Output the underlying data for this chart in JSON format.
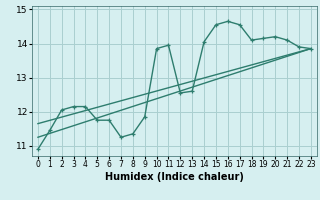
{
  "xlabel": "Humidex (Indice chaleur)",
  "background_color": "#d6eff0",
  "line_color": "#2e7d6e",
  "xlim": [
    -0.5,
    23.5
  ],
  "ylim": [
    10.7,
    15.1
  ],
  "yticks": [
    11,
    12,
    13,
    14,
    15
  ],
  "xticks": [
    0,
    1,
    2,
    3,
    4,
    5,
    6,
    7,
    8,
    9,
    10,
    11,
    12,
    13,
    14,
    15,
    16,
    17,
    18,
    19,
    20,
    21,
    22,
    23
  ],
  "curve1_x": [
    0,
    1,
    2,
    3,
    4,
    5,
    6,
    7,
    8,
    9,
    10,
    11,
    12,
    13,
    14,
    15,
    16,
    17,
    18,
    19,
    20,
    21,
    22,
    23
  ],
  "curve1_y": [
    10.9,
    11.45,
    12.05,
    12.15,
    12.15,
    11.75,
    11.75,
    11.25,
    11.35,
    11.85,
    13.85,
    13.95,
    12.55,
    12.6,
    14.05,
    14.55,
    14.65,
    14.55,
    14.1,
    14.15,
    14.2,
    14.1,
    13.9,
    13.85
  ],
  "line1_x": [
    0,
    23
  ],
  "line1_y": [
    11.25,
    13.85
  ],
  "line2_x": [
    0,
    23
  ],
  "line2_y": [
    11.65,
    13.85
  ],
  "grid_color": "#aacfcf",
  "xlabel_fontsize": 7,
  "ytick_fontsize": 6.5,
  "xtick_fontsize": 5.5
}
